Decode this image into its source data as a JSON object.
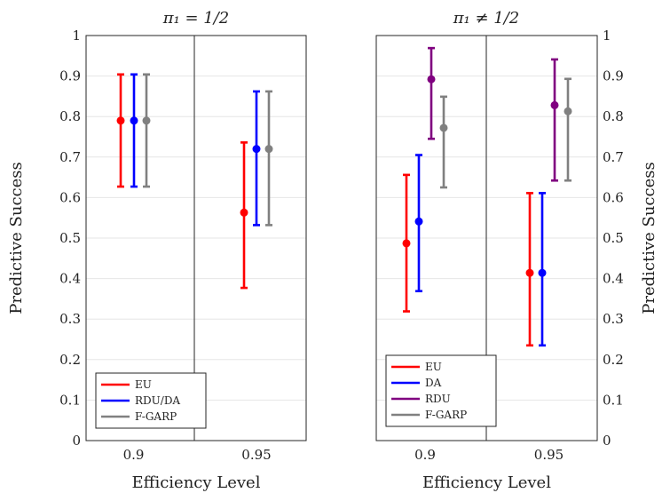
{
  "chart_data": [
    {
      "type": "errorbar",
      "title": "π₁ = 1/2",
      "xlabel": "Efficiency Level",
      "ylabel": "Predictive Success",
      "ylim": [
        0,
        1
      ],
      "yticks": [
        0,
        0.1,
        0.2,
        0.3,
        0.4,
        0.5,
        0.6,
        0.7,
        0.8,
        0.9,
        1
      ],
      "categories": [
        "0.9",
        "0.95"
      ],
      "ytick_side": "left",
      "legend_position": "bottom-left",
      "series": [
        {
          "name": "EU",
          "color": "#ff0000",
          "values": [
            0.79,
            0.563
          ],
          "lower": [
            0.627,
            0.377
          ],
          "upper": [
            0.904,
            0.736
          ]
        },
        {
          "name": "RDU/DA",
          "color": "#0000ff",
          "values": [
            0.79,
            0.72
          ],
          "lower": [
            0.627,
            0.532
          ],
          "upper": [
            0.904,
            0.862
          ]
        },
        {
          "name": "F-GARP",
          "color": "#808080",
          "values": [
            0.79,
            0.72
          ],
          "lower": [
            0.627,
            0.532
          ],
          "upper": [
            0.904,
            0.862
          ]
        }
      ]
    },
    {
      "type": "errorbar",
      "title": "π₁ ≠ 1/2",
      "xlabel": "Efficiency Level",
      "ylabel": "Predictive Success",
      "ylim": [
        0,
        1
      ],
      "yticks": [
        0,
        0.1,
        0.2,
        0.3,
        0.4,
        0.5,
        0.6,
        0.7,
        0.8,
        0.9,
        1
      ],
      "categories": [
        "0.9",
        "0.95"
      ],
      "ytick_side": "right",
      "legend_position": "bottom-left",
      "series": [
        {
          "name": "EU",
          "color": "#ff0000",
          "values": [
            0.487,
            0.414
          ],
          "lower": [
            0.319,
            0.235
          ],
          "upper": [
            0.656,
            0.611
          ]
        },
        {
          "name": "DA",
          "color": "#0000ff",
          "values": [
            0.541,
            0.414
          ],
          "lower": [
            0.369,
            0.235
          ],
          "upper": [
            0.705,
            0.611
          ]
        },
        {
          "name": "RDU",
          "color": "#800080",
          "values": [
            0.892,
            0.828
          ],
          "lower": [
            0.745,
            0.642
          ],
          "upper": [
            0.969,
            0.941
          ]
        },
        {
          "name": "F-GARP",
          "color": "#808080",
          "values": [
            0.772,
            0.813
          ],
          "lower": [
            0.625,
            0.642
          ],
          "upper": [
            0.849,
            0.893
          ]
        }
      ]
    }
  ]
}
